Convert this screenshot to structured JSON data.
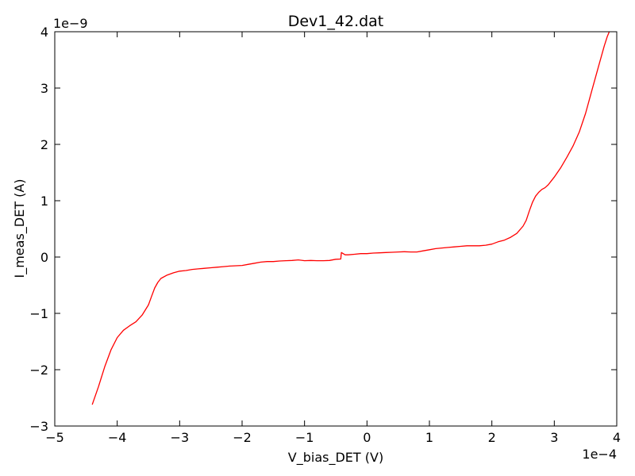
{
  "chart_data": {
    "type": "line",
    "title": "Dev1_42.dat",
    "xlabel": "V_bias_DET (V)",
    "ylabel": "I_meas_DET (A)",
    "x_offset_label": "1e−4",
    "y_offset_label": "1e−9",
    "xlim": [
      -5,
      4
    ],
    "ylim": [
      -3,
      4
    ],
    "x_ticks": [
      -5,
      -4,
      -3,
      -2,
      -1,
      0,
      1,
      2,
      3,
      4
    ],
    "x_tick_labels": [
      "−5",
      "−4",
      "−3",
      "−2",
      "−1",
      "0",
      "1",
      "2",
      "3",
      "4"
    ],
    "y_ticks": [
      -3,
      -2,
      -1,
      0,
      1,
      2,
      3,
      4
    ],
    "y_tick_labels": [
      "−3",
      "−2",
      "−1",
      "0",
      "1",
      "2",
      "3",
      "4"
    ],
    "grid": false,
    "series": [
      {
        "color": "#ff0000",
        "x": [
          -4.4,
          -4.3,
          -4.2,
          -4.1,
          -4.0,
          -3.9,
          -3.8,
          -3.7,
          -3.6,
          -3.5,
          -3.45,
          -3.4,
          -3.35,
          -3.3,
          -3.2,
          -3.1,
          -3.0,
          -2.9,
          -2.8,
          -2.7,
          -2.6,
          -2.5,
          -2.4,
          -2.3,
          -2.2,
          -2.1,
          -2.0,
          -1.9,
          -1.8,
          -1.7,
          -1.6,
          -1.5,
          -1.4,
          -1.3,
          -1.2,
          -1.1,
          -1.0,
          -0.9,
          -0.8,
          -0.7,
          -0.6,
          -0.5,
          -0.42,
          -0.41,
          -0.38,
          -0.35,
          -0.3,
          -0.2,
          -0.1,
          0.0,
          0.1,
          0.2,
          0.3,
          0.4,
          0.5,
          0.6,
          0.7,
          0.8,
          0.9,
          1.0,
          1.1,
          1.2,
          1.3,
          1.4,
          1.5,
          1.6,
          1.7,
          1.8,
          1.9,
          2.0,
          2.1,
          2.2,
          2.3,
          2.4,
          2.5,
          2.55,
          2.6,
          2.65,
          2.7,
          2.75,
          2.8,
          2.85,
          2.9,
          2.95,
          3.0,
          3.1,
          3.2,
          3.3,
          3.4,
          3.5,
          3.6,
          3.7,
          3.8,
          3.85,
          3.9,
          3.93
        ],
        "y": [
          -2.62,
          -2.3,
          -1.95,
          -1.65,
          -1.43,
          -1.3,
          -1.22,
          -1.15,
          -1.03,
          -0.85,
          -0.7,
          -0.55,
          -0.45,
          -0.38,
          -0.32,
          -0.28,
          -0.25,
          -0.24,
          -0.22,
          -0.21,
          -0.2,
          -0.19,
          -0.18,
          -0.17,
          -0.16,
          -0.155,
          -0.15,
          -0.13,
          -0.11,
          -0.09,
          -0.08,
          -0.08,
          -0.07,
          -0.065,
          -0.06,
          -0.05,
          -0.065,
          -0.06,
          -0.065,
          -0.065,
          -0.06,
          -0.04,
          -0.035,
          0.08,
          0.06,
          0.04,
          0.04,
          0.05,
          0.06,
          0.06,
          0.07,
          0.075,
          0.08,
          0.085,
          0.09,
          0.095,
          0.09,
          0.09,
          0.11,
          0.13,
          0.15,
          0.16,
          0.17,
          0.18,
          0.19,
          0.2,
          0.2,
          0.2,
          0.21,
          0.23,
          0.27,
          0.3,
          0.35,
          0.42,
          0.55,
          0.65,
          0.82,
          0.97,
          1.08,
          1.15,
          1.2,
          1.23,
          1.28,
          1.35,
          1.42,
          1.58,
          1.77,
          1.97,
          2.22,
          2.55,
          2.95,
          3.35,
          3.75,
          3.92,
          4.05,
          4.15
        ]
      }
    ]
  }
}
